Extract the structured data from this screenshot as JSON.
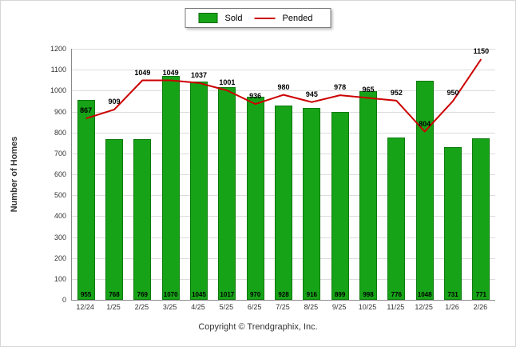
{
  "footer": {
    "copyright": "Copyright © Trendgraphix, Inc."
  },
  "colors": {
    "bar": "#17a317",
    "bar_border": "#0c7a0c",
    "line": "#cc0000",
    "grid": "#dcdcdc",
    "axis": "#8a8a8a"
  },
  "chart_data": {
    "type": "bar",
    "subtype": "combo-bar-line",
    "categories": [
      "12/24",
      "1/25",
      "2/25",
      "3/25",
      "4/25",
      "5/25",
      "6/25",
      "7/25",
      "8/25",
      "9/25",
      "10/25",
      "11/25",
      "12/25",
      "1/26",
      "2/26"
    ],
    "series": [
      {
        "name": "Sold",
        "type": "bar",
        "color": "#17a317",
        "values": [
          955,
          768,
          769,
          1070,
          1045,
          1017,
          970,
          928,
          916,
          899,
          998,
          776,
          1048,
          731,
          771
        ]
      },
      {
        "name": "Pended",
        "type": "line",
        "color": "#cc0000",
        "values": [
          867,
          909,
          1049,
          1049,
          1037,
          1001,
          936,
          980,
          945,
          978,
          965,
          952,
          804,
          950,
          1150
        ]
      }
    ],
    "title": "",
    "xlabel": "",
    "ylabel": "Number of Homes",
    "ylim": [
      0,
      1200
    ],
    "ytick_step": 100,
    "grid": true,
    "legend_position": "top"
  }
}
